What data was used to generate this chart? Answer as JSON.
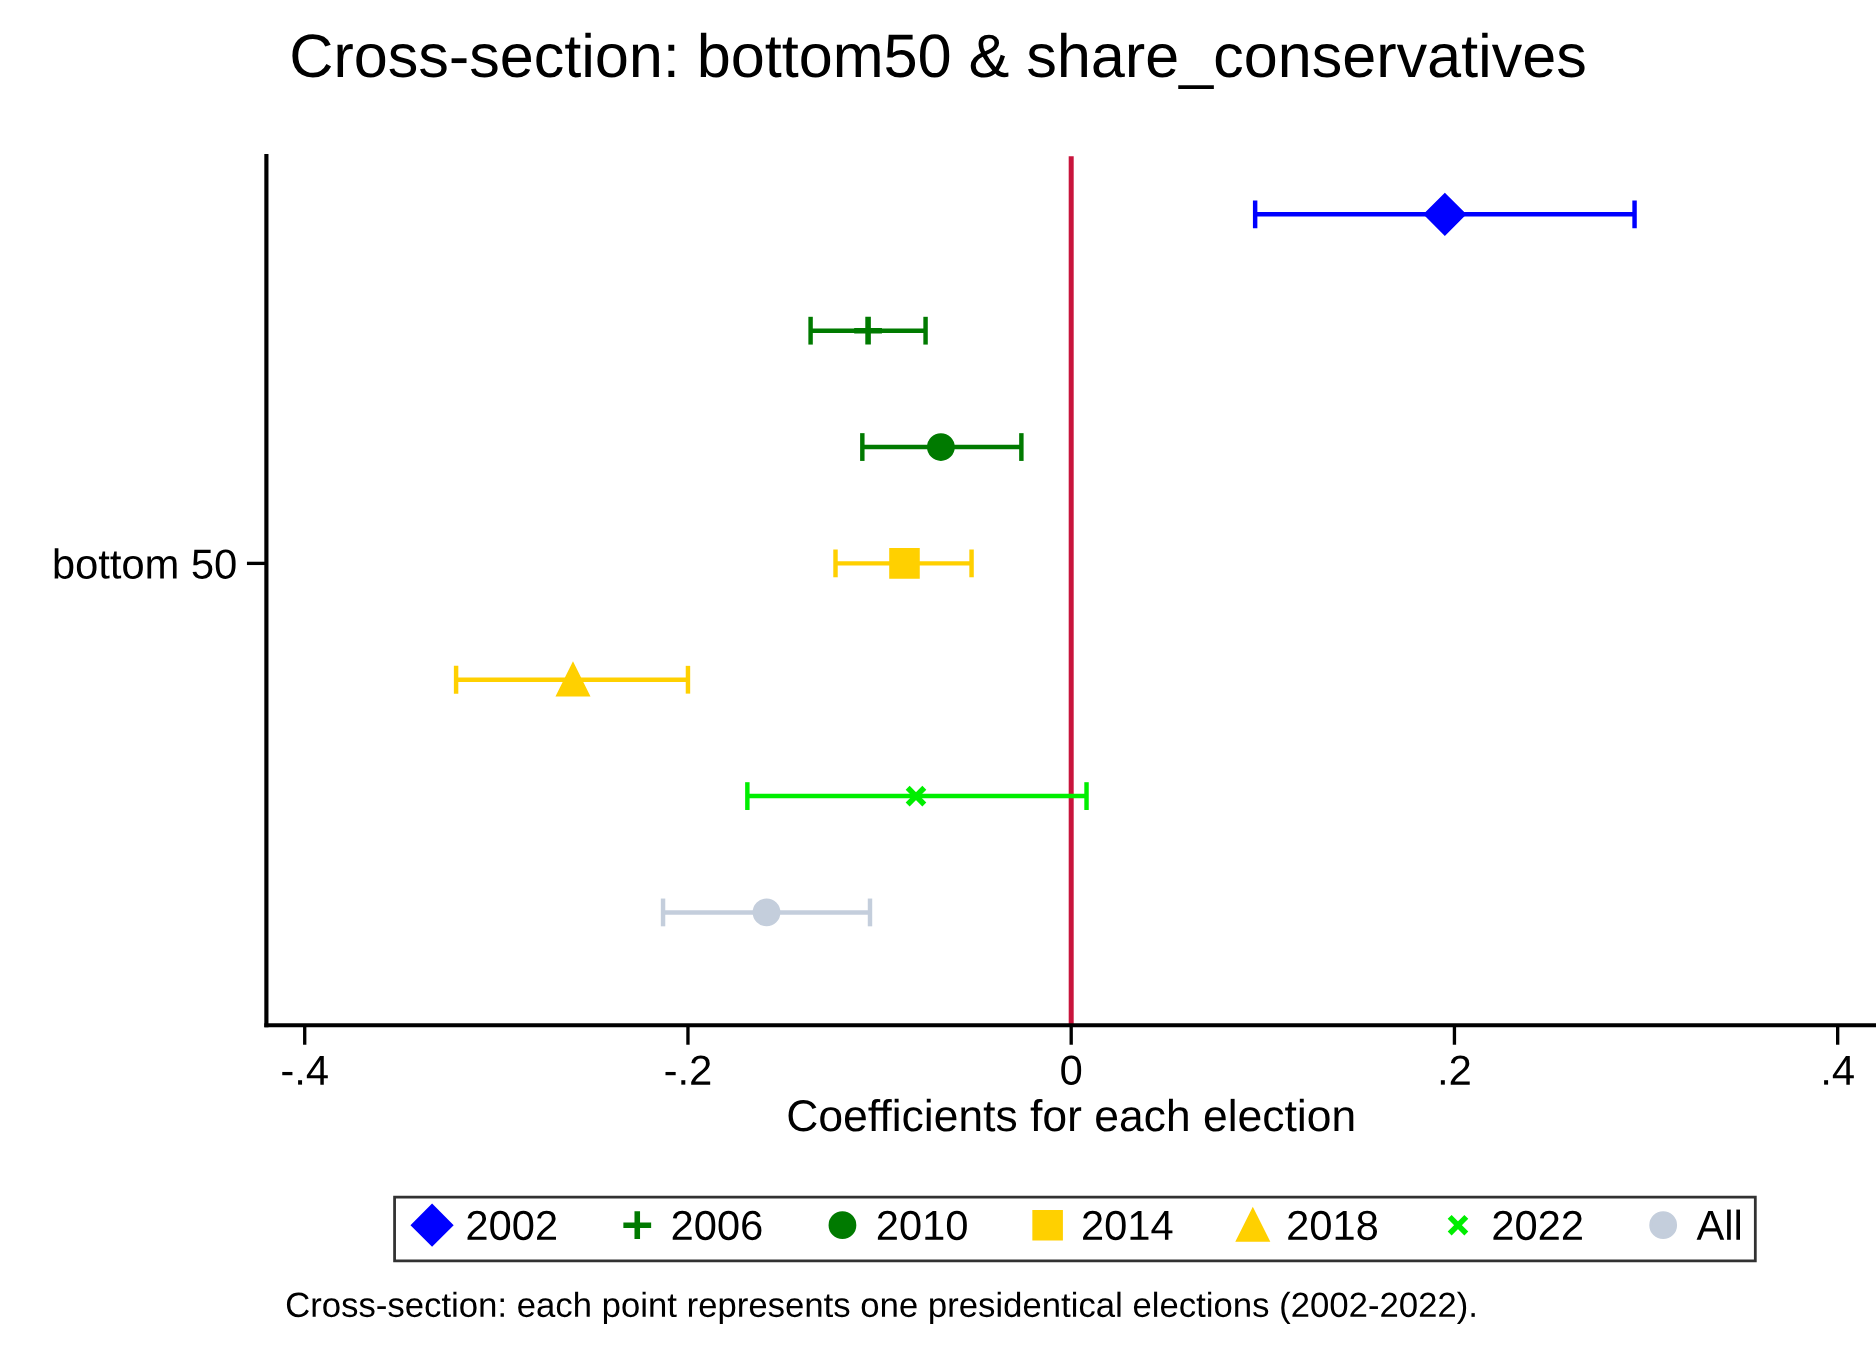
{
  "chart_data": {
    "type": "scatter",
    "orientation": "horizontal",
    "title": "Cross-section: bottom50 & share_conservatives",
    "xlabel": "Coefficients for each election",
    "categories": [
      null,
      null,
      null,
      "bottom 50",
      null,
      null,
      null
    ],
    "series": [
      {
        "name": "2002",
        "color": "#0000ff",
        "marker": "diamond",
        "values": [
          0.195,
          null,
          null,
          null,
          null,
          null,
          null
        ],
        "errors": [
          [
            0.096,
            0.294
          ],
          null,
          null,
          null,
          null,
          null,
          null
        ]
      },
      {
        "name": "2006",
        "color": "#007a00",
        "marker": "plus",
        "values": [
          null,
          -0.106,
          null,
          null,
          null,
          null,
          null
        ],
        "errors": [
          null,
          [
            -0.136,
            -0.076
          ],
          null,
          null,
          null,
          null,
          null
        ]
      },
      {
        "name": "2010",
        "color": "#007a00",
        "marker": "circle",
        "values": [
          null,
          null,
          -0.068,
          null,
          null,
          null,
          null
        ],
        "errors": [
          null,
          null,
          [
            -0.109,
            -0.026
          ],
          null,
          null,
          null,
          null
        ]
      },
      {
        "name": "2014",
        "color": "#ffd000",
        "marker": "square",
        "values": [
          null,
          null,
          null,
          -0.087,
          null,
          null,
          null
        ],
        "errors": [
          null,
          null,
          null,
          [
            -0.123,
            -0.052
          ],
          null,
          null,
          null
        ]
      },
      {
        "name": "2018",
        "color": "#ffd000",
        "marker": "triangle",
        "values": [
          null,
          null,
          null,
          null,
          -0.26,
          null,
          null
        ],
        "errors": [
          null,
          null,
          null,
          null,
          [
            -0.321,
            -0.2
          ],
          null,
          null
        ]
      },
      {
        "name": "2022",
        "color": "#00ee00",
        "marker": "cross",
        "values": [
          null,
          null,
          null,
          null,
          null,
          -0.081,
          null
        ],
        "errors": [
          null,
          null,
          null,
          null,
          null,
          [
            -0.169,
            0.008
          ],
          null
        ]
      },
      {
        "name": "All",
        "color": "#c4cedc",
        "marker": "circle",
        "values": [
          null,
          null,
          null,
          null,
          null,
          null,
          -0.159
        ],
        "errors": [
          null,
          null,
          null,
          null,
          null,
          null,
          [
            -0.213,
            -0.105
          ]
        ]
      }
    ],
    "xlim": [
      -0.42,
      0.42
    ],
    "xticks": [
      {
        "value": -0.4,
        "label": "-.4"
      },
      {
        "value": -0.2,
        "label": "-.2"
      },
      0,
      {
        "value": 0.2,
        "label": ".2"
      },
      {
        "value": 0.4,
        "label": ".4"
      }
    ],
    "ref_lines": [
      {
        "axis": "x",
        "value": 0,
        "color": "#c8143c"
      }
    ],
    "grid": false,
    "legend": "bottom",
    "annotations": [
      "Cross-section: each point represents one presidentical elections (2002-2022)."
    ]
  }
}
